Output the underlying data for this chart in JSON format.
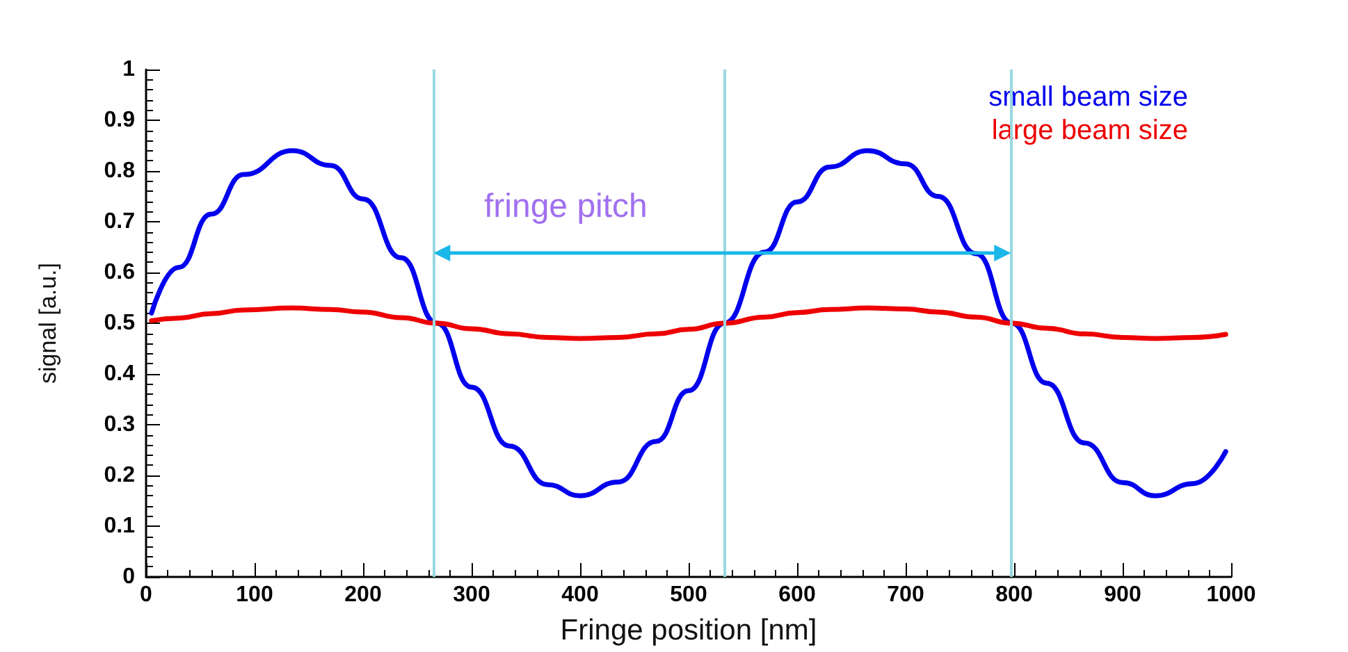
{
  "chart_data": {
    "type": "line",
    "xlabel": "Fringe position [nm]",
    "ylabel": "signal [a.u.]",
    "x": [
      5,
      30,
      60,
      90,
      135,
      170,
      200,
      235,
      268,
      300,
      335,
      370,
      400,
      435,
      470,
      500,
      533,
      570,
      600,
      630,
      665,
      700,
      730,
      765,
      798,
      830,
      865,
      900,
      930,
      965,
      995
    ],
    "series": [
      {
        "name": "small beam size",
        "color": "#0000ee",
        "values": [
          0.52,
          0.61,
          0.715,
          0.793,
          0.84,
          0.811,
          0.745,
          0.629,
          0.5,
          0.374,
          0.258,
          0.182,
          0.16,
          0.187,
          0.267,
          0.367,
          0.5,
          0.64,
          0.739,
          0.808,
          0.84,
          0.814,
          0.75,
          0.637,
          0.5,
          0.382,
          0.264,
          0.186,
          0.16,
          0.184,
          0.247
        ]
      },
      {
        "name": "large beam size",
        "color": "#ee0000",
        "values": [
          0.505,
          0.51,
          0.519,
          0.526,
          0.53,
          0.527,
          0.522,
          0.511,
          0.5,
          0.489,
          0.479,
          0.472,
          0.47,
          0.472,
          0.479,
          0.488,
          0.5,
          0.512,
          0.521,
          0.527,
          0.53,
          0.528,
          0.522,
          0.512,
          0.5,
          0.49,
          0.479,
          0.472,
          0.47,
          0.472,
          0.478
        ]
      }
    ],
    "xlim": [
      0,
      1000
    ],
    "xticks": [
      0,
      100,
      200,
      300,
      400,
      500,
      600,
      700,
      800,
      900,
      1000
    ],
    "ylim": [
      0,
      1
    ],
    "yticks": [
      0,
      0.1,
      0.2,
      0.3,
      0.4,
      0.5,
      0.6,
      0.7,
      0.8,
      0.9,
      1
    ],
    "ref_lines": [
      {
        "axis": "x",
        "value": 265,
        "color": "#99d8e0"
      },
      {
        "axis": "x",
        "value": 533,
        "color": "#99d8e0"
      },
      {
        "axis": "x",
        "value": 797,
        "color": "#99d8e0"
      }
    ],
    "annotations": [
      "fringe pitch"
    ],
    "grid": false,
    "legend": "top right",
    "marker": "none",
    "line_style": "solid"
  }
}
